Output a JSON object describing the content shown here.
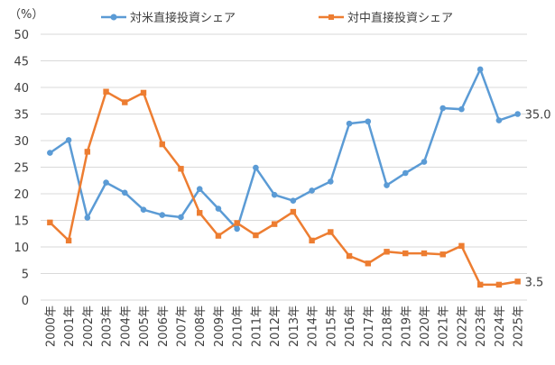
{
  "chart_data": {
    "type": "line",
    "unit_label": "（%）",
    "x": [
      "2000年",
      "2001年",
      "2002年",
      "2003年",
      "2004年",
      "2005年",
      "2006年",
      "2007年",
      "2008年",
      "2009年",
      "2010年",
      "2011年",
      "2012年",
      "2013年",
      "2014年",
      "2015年",
      "2016年",
      "2017年",
      "2018年",
      "2019年",
      "2020年",
      "2021年",
      "2022年",
      "2023年",
      "2024年",
      "2025年"
    ],
    "ylim": [
      0,
      50
    ],
    "yticks": [
      0,
      5,
      10,
      15,
      20,
      25,
      30,
      35,
      40,
      45,
      50
    ],
    "grid": true,
    "legend_position": "top",
    "series": [
      {
        "name": "対米直接投資シェア",
        "color": "#5b9bd5",
        "marker": "circle",
        "values": [
          27.7,
          30.1,
          15.5,
          22.1,
          20.2,
          17.0,
          16.0,
          15.6,
          20.9,
          17.2,
          13.4,
          24.9,
          19.8,
          18.7,
          20.6,
          22.3,
          33.2,
          33.6,
          21.6,
          23.9,
          26.0,
          36.1,
          35.9,
          43.4,
          33.8,
          35.0
        ],
        "end_label": "35.0"
      },
      {
        "name": "対中直接投資シェア",
        "color": "#ed7d31",
        "marker": "square",
        "values": [
          14.6,
          11.2,
          27.9,
          39.2,
          37.2,
          39.0,
          29.3,
          24.7,
          16.4,
          12.1,
          14.5,
          12.2,
          14.3,
          16.6,
          11.2,
          12.8,
          8.3,
          6.9,
          9.1,
          8.8,
          8.8,
          8.6,
          10.2,
          2.9,
          2.9,
          3.5
        ],
        "end_label": "3.5"
      }
    ]
  }
}
